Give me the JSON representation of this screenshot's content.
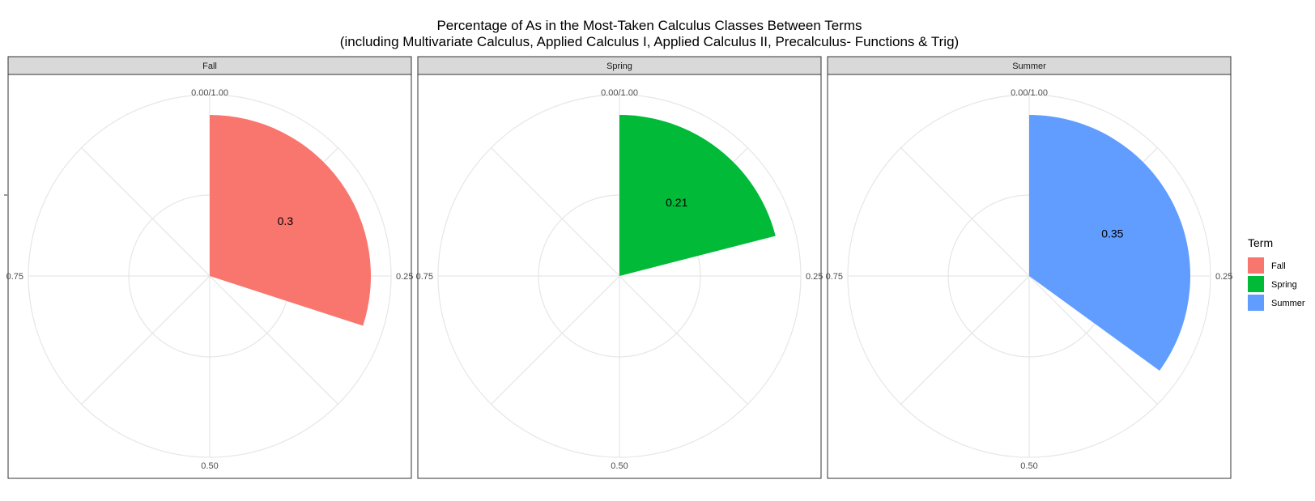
{
  "chart_data": {
    "type": "pie",
    "title_line1": "Percentage of As in the Most-Taken Calculus Classes Between Terms",
    "title_line2": "(including Multivariate Calculus, Applied Calculus I, Applied Calculus II, Precalculus- Functions & Trig)",
    "theta_tick_labels": [
      "0.00/1.00",
      "0.25",
      "0.50",
      "0.75"
    ],
    "theta_ticks": [
      0,
      0.25,
      0.5,
      0.75
    ],
    "grid": true,
    "legend": {
      "title": "Term",
      "position": "right",
      "entries": [
        "Fall",
        "Spring",
        "Summer"
      ]
    },
    "facets": [
      {
        "name": "Fall",
        "value": 0.3,
        "label": "0.3",
        "color": "#F8766D"
      },
      {
        "name": "Spring",
        "value": 0.21,
        "label": "0.21",
        "color": "#00BA38"
      },
      {
        "name": "Summer",
        "value": 0.35,
        "label": "0.35",
        "color": "#619CFF"
      }
    ],
    "colors": {
      "strip_fill": "#d9d9d9",
      "panel_border": "#333333",
      "grid": "#e6e6e6"
    }
  }
}
